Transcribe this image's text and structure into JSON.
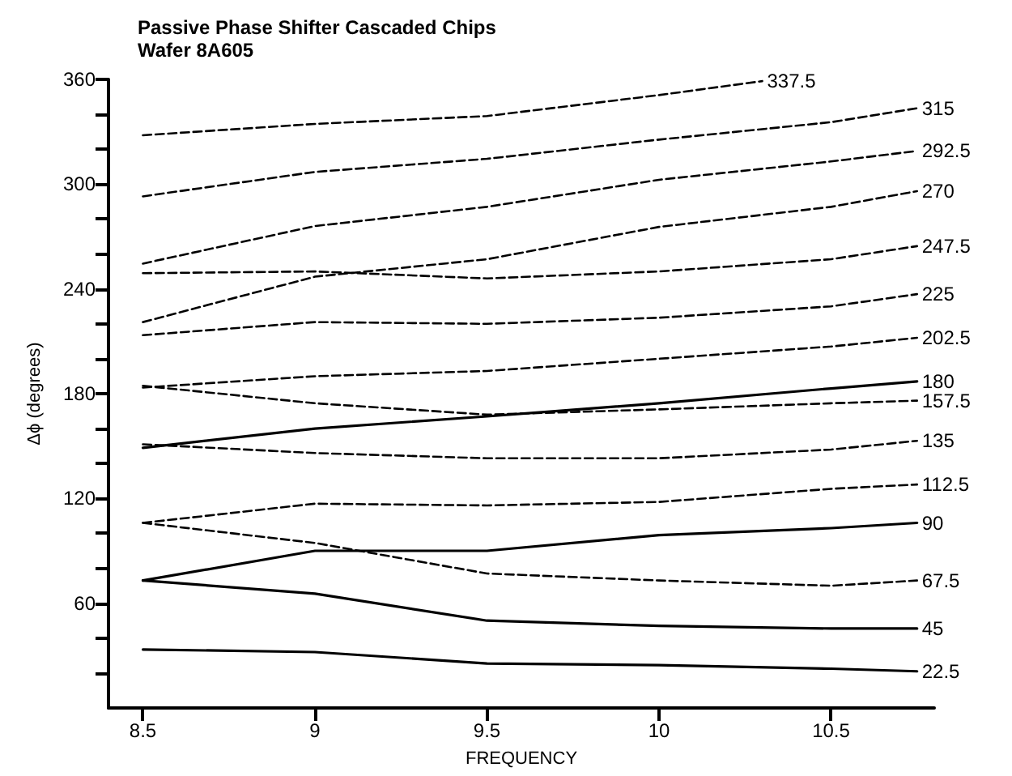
{
  "chart_data": {
    "type": "line",
    "title": "Passive Phase Shifter Cascaded Chips",
    "subtitle": "Wafer 8A605",
    "xlabel": "FREQUENCY",
    "ylabel": "Δϕ (degrees)",
    "x": [
      8.5,
      9,
      9.5,
      10,
      10.5,
      10.75
    ],
    "xlim": [
      8.4,
      10.8
    ],
    "xticks": [
      8.5,
      9,
      9.5,
      10,
      10.5
    ],
    "ylim": [
      0,
      360
    ],
    "yticks": [
      {
        "value": 20,
        "label": null
      },
      {
        "value": 40,
        "label": null
      },
      60,
      {
        "value": 80,
        "label": null
      },
      {
        "value": 100,
        "label": null
      },
      120,
      {
        "value": 140,
        "label": null
      },
      {
        "value": 160,
        "label": null
      },
      180,
      {
        "value": 200,
        "label": null
      },
      {
        "value": 220,
        "label": null
      },
      240,
      {
        "value": 260,
        "label": null
      },
      {
        "value": 280,
        "label": null
      },
      300,
      {
        "value": 320,
        "label": null
      },
      {
        "value": 340,
        "label": null
      },
      360
    ],
    "grid": false,
    "legend": false,
    "marker": "none",
    "series": [
      {
        "name": "337.5",
        "color": "#000000",
        "line_style": "dashed",
        "x": [
          8.5,
          9,
          9.5,
          10,
          10.3
        ],
        "values": [
          328,
          334.5,
          339,
          351,
          359
        ]
      },
      {
        "name": "315",
        "color": "#000000",
        "line_style": "dashed",
        "values": [
          293,
          307,
          314.5,
          325.5,
          335.5,
          343.5
        ]
      },
      {
        "name": "292.5",
        "color": "#000000",
        "line_style": "dashed",
        "values": [
          254.5,
          276,
          287,
          302.5,
          313,
          319
        ]
      },
      {
        "name": "270",
        "color": "#000000",
        "line_style": "dashed",
        "values": [
          221,
          247,
          257,
          275.5,
          287,
          296
        ]
      },
      {
        "name": "247.5",
        "color": "#000000",
        "line_style": "dashed",
        "values": [
          249,
          250,
          246,
          250,
          257,
          264.5
        ]
      },
      {
        "name": "225",
        "color": "#000000",
        "line_style": "dashed",
        "values": [
          213.5,
          221,
          220,
          223.5,
          230,
          237
        ]
      },
      {
        "name": "202.5",
        "color": "#000000",
        "line_style": "dashed",
        "values": [
          183.5,
          190,
          193,
          200,
          207,
          212
        ]
      },
      {
        "name": "180",
        "color": "#000000",
        "line_style": "solid",
        "values": [
          149,
          160,
          167,
          174.5,
          183,
          187
        ]
      },
      {
        "name": "157.5",
        "color": "#000000",
        "line_style": "dashed",
        "values": [
          184.5,
          174.5,
          168,
          171,
          174.5,
          176
        ]
      },
      {
        "name": "135",
        "color": "#000000",
        "line_style": "dashed",
        "values": [
          151,
          146,
          143,
          143,
          148,
          153
        ]
      },
      {
        "name": "112.5",
        "color": "#000000",
        "line_style": "dashed",
        "values": [
          106,
          117,
          116,
          118,
          125.5,
          128
        ]
      },
      {
        "name": "90",
        "color": "#000000",
        "line_style": "solid",
        "values": [
          73,
          90,
          90,
          99,
          103,
          106
        ]
      },
      {
        "name": "67.5",
        "color": "#000000",
        "line_style": "dashed",
        "values": [
          106,
          94.5,
          77,
          73,
          70,
          73
        ]
      },
      {
        "name": "45",
        "color": "#000000",
        "line_style": "solid",
        "values": [
          73,
          65.5,
          50,
          47,
          45.5,
          45.5
        ]
      },
      {
        "name": "22.5",
        "color": "#000000",
        "line_style": "solid",
        "values": [
          33.5,
          32,
          25.5,
          24.5,
          22.5,
          21
        ]
      }
    ]
  }
}
